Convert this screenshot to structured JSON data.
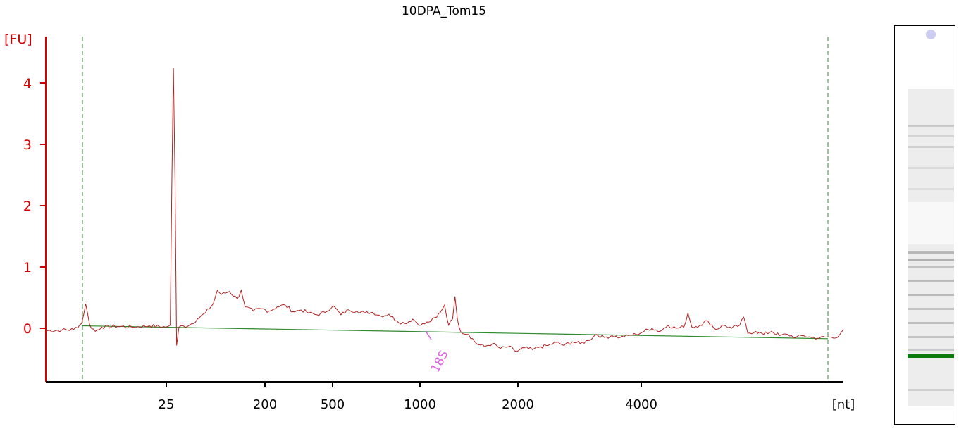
{
  "chart_data": {
    "type": "line",
    "title": "10DPA_Tom15",
    "ylabel": "[FU]",
    "xlabel": "[nt]",
    "ylim": [
      -0.9,
      4.7
    ],
    "y_ticks": [
      0,
      1,
      2,
      3,
      4
    ],
    "x_tick_labels": [
      "25",
      "200",
      "500",
      "1000",
      "2000",
      "4000"
    ],
    "annotation": "18S",
    "colors": {
      "axis": "#d40000",
      "trace": "#b22222",
      "baseline": "#2e8b2e",
      "marker": "#3a8a3a",
      "annotation": "#e060e0",
      "gel_band": "#0a7a0a"
    },
    "series": [
      {
        "points": [
          [
            0.0,
            -0.04
          ],
          [
            0.02,
            -0.03
          ],
          [
            0.035,
            -0.02
          ],
          [
            0.045,
            0.08
          ],
          [
            0.05,
            0.4
          ],
          [
            0.055,
            0.05
          ],
          [
            0.062,
            -0.05
          ],
          [
            0.07,
            0.02
          ],
          [
            0.09,
            0.03
          ],
          [
            0.11,
            0.02
          ],
          [
            0.13,
            0.04
          ],
          [
            0.15,
            0.02
          ],
          [
            0.156,
            0.05
          ],
          [
            0.158,
            2.4
          ],
          [
            0.16,
            4.25
          ],
          [
            0.162,
            2.4
          ],
          [
            0.164,
            -0.28
          ],
          [
            0.167,
            0.02
          ],
          [
            0.18,
            0.05
          ],
          [
            0.19,
            0.15
          ],
          [
            0.2,
            0.25
          ],
          [
            0.21,
            0.4
          ],
          [
            0.215,
            0.62
          ],
          [
            0.22,
            0.55
          ],
          [
            0.23,
            0.6
          ],
          [
            0.24,
            0.48
          ],
          [
            0.245,
            0.62
          ],
          [
            0.25,
            0.35
          ],
          [
            0.26,
            0.28
          ],
          [
            0.27,
            0.32
          ],
          [
            0.28,
            0.28
          ],
          [
            0.29,
            0.35
          ],
          [
            0.3,
            0.38
          ],
          [
            0.31,
            0.27
          ],
          [
            0.32,
            0.3
          ],
          [
            0.33,
            0.25
          ],
          [
            0.34,
            0.22
          ],
          [
            0.35,
            0.26
          ],
          [
            0.36,
            0.37
          ],
          [
            0.37,
            0.22
          ],
          [
            0.38,
            0.3
          ],
          [
            0.39,
            0.28
          ],
          [
            0.4,
            0.25
          ],
          [
            0.41,
            0.26
          ],
          [
            0.42,
            0.2
          ],
          [
            0.43,
            0.23
          ],
          [
            0.44,
            0.12
          ],
          [
            0.45,
            0.08
          ],
          [
            0.46,
            0.15
          ],
          [
            0.47,
            0.05
          ],
          [
            0.48,
            0.1
          ],
          [
            0.49,
            0.18
          ],
          [
            0.5,
            0.38
          ],
          [
            0.505,
            0.05
          ],
          [
            0.51,
            0.15
          ],
          [
            0.513,
            0.52
          ],
          [
            0.516,
            0.15
          ],
          [
            0.52,
            -0.05
          ],
          [
            0.53,
            -0.1
          ],
          [
            0.54,
            -0.25
          ],
          [
            0.55,
            -0.3
          ],
          [
            0.56,
            -0.25
          ],
          [
            0.57,
            -0.33
          ],
          [
            0.58,
            -0.3
          ],
          [
            0.59,
            -0.38
          ],
          [
            0.6,
            -0.32
          ],
          [
            0.61,
            -0.35
          ],
          [
            0.62,
            -0.3
          ],
          [
            0.63,
            -0.28
          ],
          [
            0.64,
            -0.23
          ],
          [
            0.65,
            -0.28
          ],
          [
            0.66,
            -0.22
          ],
          [
            0.67,
            -0.25
          ],
          [
            0.68,
            -0.2
          ],
          [
            0.69,
            -0.1
          ],
          [
            0.7,
            -0.15
          ],
          [
            0.71,
            -0.12
          ],
          [
            0.72,
            -0.15
          ],
          [
            0.73,
            -0.12
          ],
          [
            0.74,
            -0.1
          ],
          [
            0.75,
            -0.05
          ],
          [
            0.76,
            0.0
          ],
          [
            0.77,
            -0.05
          ],
          [
            0.78,
            0.05
          ],
          [
            0.79,
            0.0
          ],
          [
            0.8,
            0.02
          ],
          [
            0.805,
            0.25
          ],
          [
            0.81,
            0.02
          ],
          [
            0.82,
            0.05
          ],
          [
            0.83,
            0.12
          ],
          [
            0.84,
            -0.02
          ],
          [
            0.85,
            0.05
          ],
          [
            0.86,
            0.0
          ],
          [
            0.87,
            0.05
          ],
          [
            0.875,
            0.18
          ],
          [
            0.88,
            -0.08
          ],
          [
            0.89,
            -0.05
          ],
          [
            0.9,
            -0.1
          ],
          [
            0.91,
            -0.05
          ],
          [
            0.92,
            -0.12
          ],
          [
            0.93,
            -0.1
          ],
          [
            0.94,
            -0.15
          ],
          [
            0.95,
            -0.12
          ],
          [
            0.96,
            -0.15
          ],
          [
            0.97,
            -0.16
          ],
          [
            0.98,
            -0.14
          ],
          [
            0.99,
            -0.16
          ],
          [
            1.0,
            -0.02
          ]
        ]
      }
    ],
    "baseline_start": 0.04,
    "baseline_end": -0.17
  },
  "gel": {
    "marker_band_color": "#0a7a0a"
  }
}
